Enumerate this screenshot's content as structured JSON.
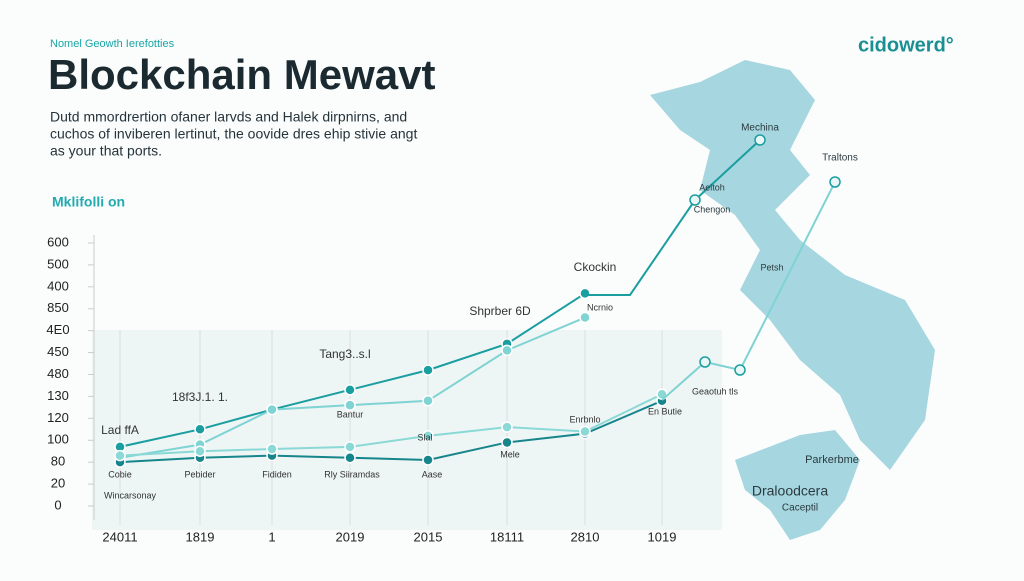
{
  "chart_data": {
    "type": "line",
    "kicker": "Nomel Geowth Ierefotties",
    "title": "Blockchain Mewavt",
    "description": [
      "Dutd mmordrertion ofaner larvds and Halek dirpnirns, and",
      "cuchos of inviberen lertinut, the oovide dres ehip stivie angt",
      "as your that ports."
    ],
    "brand": "cidowerd°",
    "section_label": "Mklifolli on",
    "categories": [
      "24011",
      "1819",
      "1",
      "2019",
      "2015",
      "18111",
      "2810",
      "1019"
    ],
    "ylim": [
      0,
      12
    ],
    "yticks": [
      {
        "value": 0,
        "label": "0"
      },
      {
        "value": 1,
        "label": "20"
      },
      {
        "value": 2,
        "label": "80"
      },
      {
        "value": 3,
        "label": "100"
      },
      {
        "value": 4,
        "label": "120"
      },
      {
        "value": 5,
        "label": "130"
      },
      {
        "value": 6,
        "label": "480"
      },
      {
        "value": 7,
        "label": "450"
      },
      {
        "value": 8,
        "label": "4E0"
      },
      {
        "value": 9,
        "label": "850"
      },
      {
        "value": 10,
        "label": "400"
      },
      {
        "value": 11,
        "label": "500"
      },
      {
        "value": 12,
        "label": "600"
      }
    ],
    "series": [
      {
        "color": "#1a9ea0",
        "values": [
          2.7,
          3.5,
          4.4,
          5.3,
          6.2,
          7.4,
          9.7,
          null
        ]
      },
      {
        "color": "#7fd3d3",
        "values": [
          2.2,
          2.8,
          4.4,
          4.6,
          4.8,
          7.1,
          8.6,
          null
        ]
      },
      {
        "color": "#16858c",
        "values": [
          2.0,
          2.2,
          2.3,
          2.2,
          2.1,
          2.9,
          3.3,
          4.8
        ]
      },
      {
        "color": "#8ad9d6",
        "values": [
          2.3,
          2.5,
          2.6,
          2.7,
          3.2,
          3.6,
          3.4,
          5.1
        ]
      }
    ],
    "annotations": [
      "Lad ffA",
      "18f3J.1. 1.",
      "Tang3..s.l",
      "Shprber 6D",
      "Ckockin",
      "Ncrnio",
      "Bantur",
      "Cobie",
      "Pebider",
      "Fididen",
      "Rly Siiramdas",
      "Aase",
      "Mele",
      "Enrbnlo",
      "En Butie",
      "Geaotuh tls",
      "Wincarsonay",
      "Slal"
    ],
    "map_labels": [
      "Mechina",
      "Traltons",
      "Aeitoh",
      "Chengon",
      "Petsh",
      "Parkerbme",
      "Draloodcera",
      "Caceptil"
    ]
  }
}
